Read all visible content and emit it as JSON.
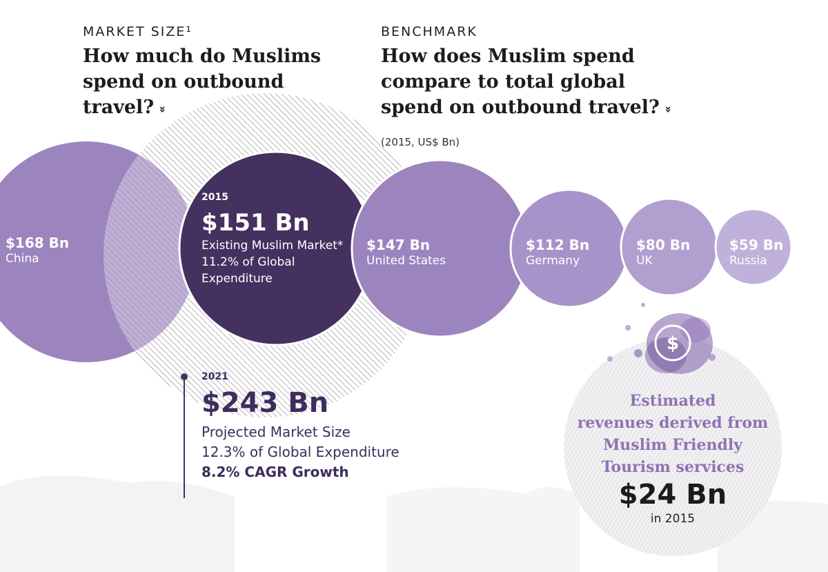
{
  "left_section": {
    "kicker": "MARKET SIZE¹",
    "headline_lines": [
      "How much do Muslims",
      "spend on outbound",
      "travel?"
    ],
    "chevron_icon": "double-chevron-down-icon"
  },
  "right_section": {
    "kicker": "BENCHMARK",
    "headline_lines": [
      "How does Muslim spend",
      "compare to total global",
      "spend on outbound travel?"
    ],
    "chevron_icon": "double-chevron-down-icon",
    "note": "(2015, US$ Bn)"
  },
  "chart_data": {
    "type": "bubble",
    "categories": [
      "China",
      "Existing Muslim Market*",
      "United States",
      "Germany",
      "UK",
      "Russia"
    ],
    "values": [
      168,
      151,
      147,
      112,
      80,
      59
    ],
    "bubbles": [
      {
        "value_label": "$168 Bn",
        "name": "China",
        "value": 168,
        "color": "#9c84bf"
      },
      {
        "value_label": "$147 Bn",
        "name": "United States",
        "value": 147,
        "color": "#9c84bf"
      },
      {
        "value_label": "$112 Bn",
        "name": "Germany",
        "value": 112,
        "color": "#a793c9"
      },
      {
        "value_label": "$80 Bn",
        "name": "UK",
        "value": 80,
        "color": "#b19fd0"
      },
      {
        "value_label": "$59 Bn",
        "name": "Russia",
        "value": 59,
        "color": "#bfb1da"
      }
    ],
    "muslim_2015": {
      "year": "2015",
      "value_label": "$151 Bn",
      "value": 151,
      "desc_lines": [
        "Existing Muslim Market*",
        "11.2% of Global",
        "Expenditure"
      ],
      "color": "#44315f"
    },
    "muslim_2021": {
      "year": "2021",
      "value_label": "$243 Bn",
      "value": 243,
      "desc_lines": [
        "Projected Market Size",
        "12.3% of Global Expenditure"
      ],
      "growth": "8.2% CAGR Growth"
    }
  },
  "revenue": {
    "icon": "dollar-coin-icon",
    "title_lines": [
      "Estimated",
      "revenues derived from",
      "Muslim Friendly",
      "Tourism services"
    ],
    "value": "$24 Bn",
    "subtitle": "in 2015"
  },
  "colors": {
    "purple_dark": "#44315f",
    "purple_mid": "#9c84bf",
    "purple_light": "#bfb1da",
    "accent_text": "#8f73b2",
    "hatch": "#b4b4b4"
  }
}
